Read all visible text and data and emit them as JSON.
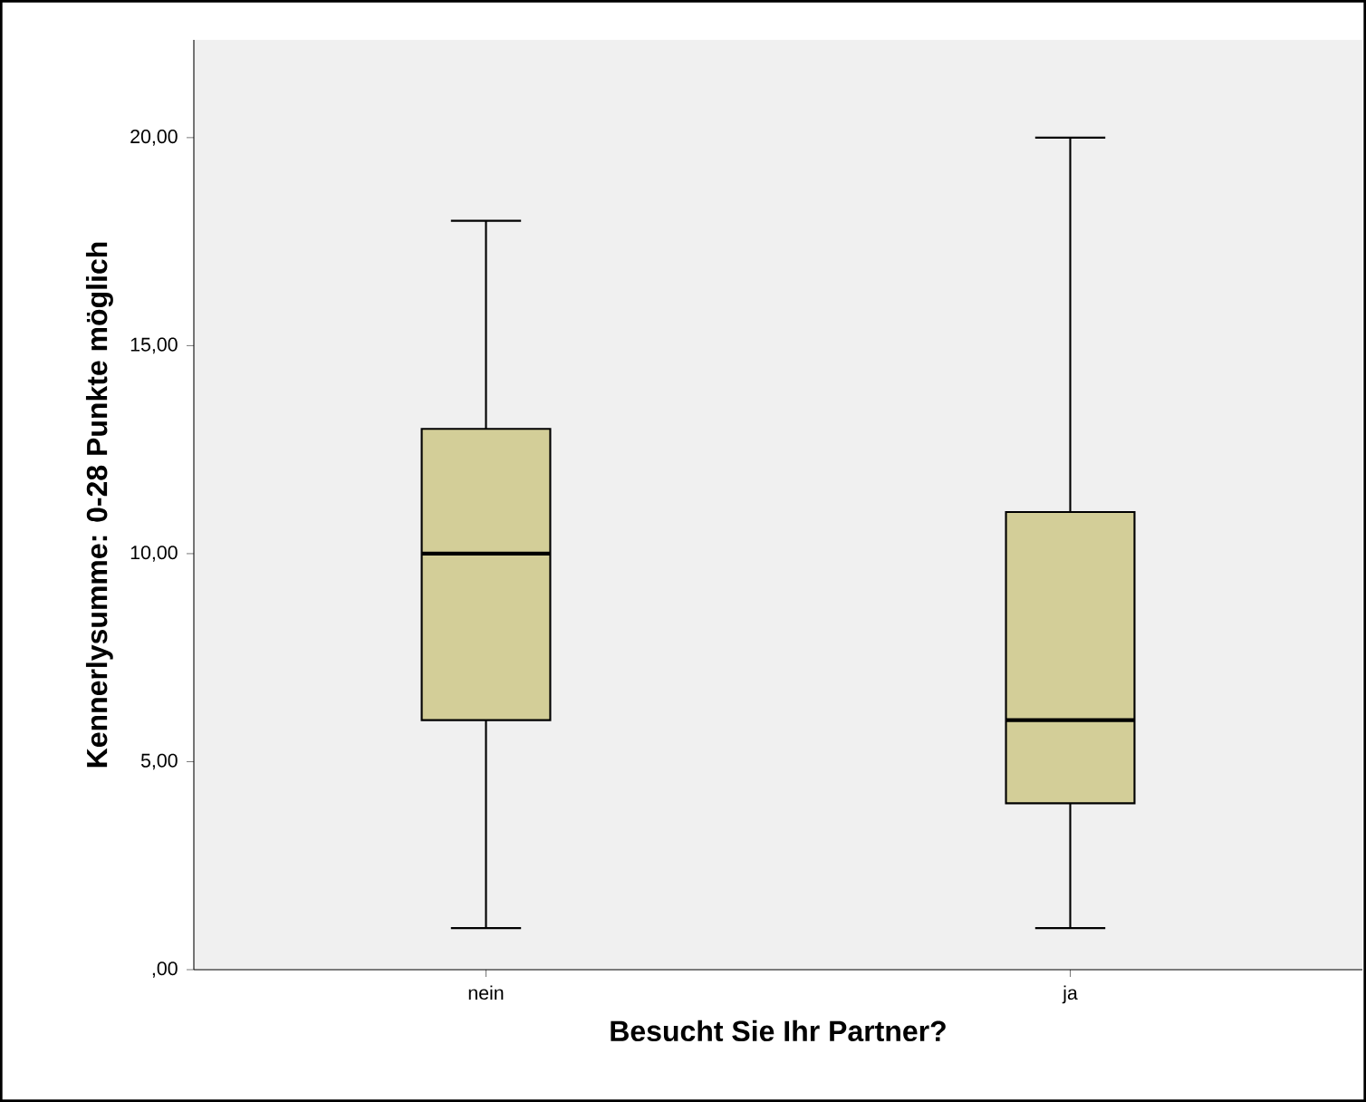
{
  "chart_data": {
    "type": "box",
    "xlabel": "Besucht Sie Ihr Partner?",
    "ylabel": "Kennerlysumme: 0-28 Punkte möglich",
    "categories": [
      "nein",
      "ja"
    ],
    "boxes": [
      {
        "low": 1,
        "q1": 6,
        "median": 10,
        "q3": 13,
        "high": 18
      },
      {
        "low": 1,
        "q1": 4,
        "median": 6,
        "q3": 11,
        "high": 20
      }
    ],
    "color": "#d3ce98",
    "ylim": [
      0,
      22.35
    ],
    "yticks": [
      {
        "value": 0,
        "label": ",00"
      },
      {
        "value": 5,
        "label": "5,00"
      },
      {
        "value": 10,
        "label": "10,00"
      },
      {
        "value": 15,
        "label": "15,00"
      },
      {
        "value": 20,
        "label": "20,00"
      }
    ],
    "grid": false
  }
}
